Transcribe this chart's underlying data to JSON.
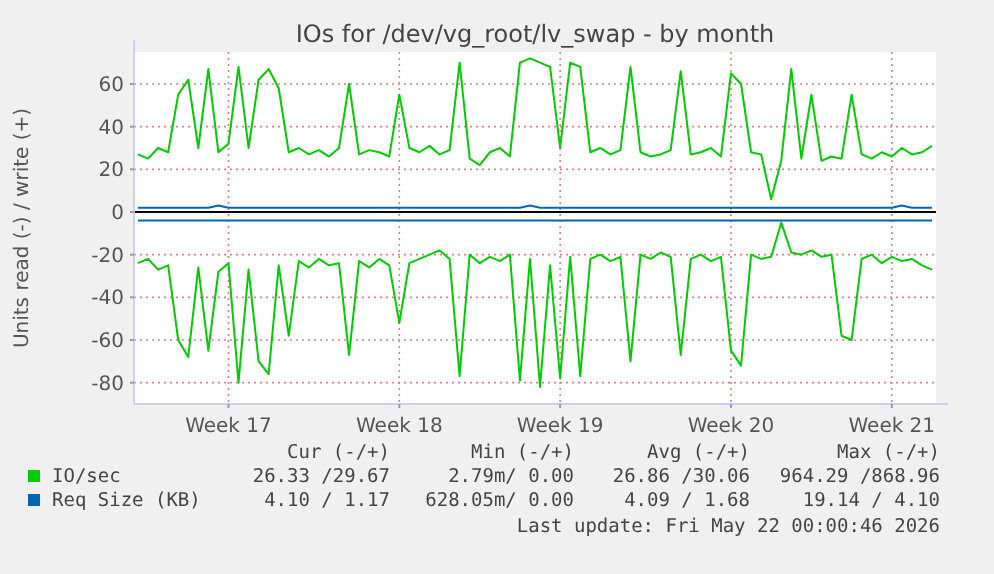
{
  "chart_data": {
    "type": "line",
    "title": "IOs for /dev/vg_root/lv_swap - by month",
    "ylabel": "Units read (-) / write (+)",
    "categories": [
      null,
      null,
      null,
      null,
      null,
      null,
      null,
      null,
      null,
      "Week 17",
      null,
      null,
      null,
      null,
      null,
      null,
      null,
      null,
      null,
      null,
      null,
      null,
      null,
      null,
      null,
      null,
      "Week 18",
      null,
      null,
      null,
      null,
      null,
      null,
      null,
      null,
      null,
      null,
      null,
      null,
      null,
      null,
      null,
      "Week 19",
      null,
      null,
      null,
      null,
      null,
      null,
      null,
      null,
      null,
      null,
      null,
      null,
      null,
      null,
      null,
      null,
      "Week 20",
      null,
      null,
      null,
      null,
      null,
      null,
      null,
      null,
      null,
      null,
      null,
      null,
      null,
      null,
      null,
      "Week 21",
      null,
      null,
      null,
      null
    ],
    "series": [
      {
        "name": "IO/sec",
        "color": "#00cc00",
        "values": [
          27,
          25,
          30,
          28,
          55,
          62,
          30,
          67,
          28,
          32,
          68,
          30,
          62,
          67,
          58,
          28,
          30,
          27,
          29,
          26,
          30,
          60,
          27,
          29,
          28,
          26,
          55,
          30,
          28,
          31,
          27,
          29,
          70,
          25,
          22,
          28,
          30,
          26,
          70,
          72,
          70,
          68,
          30,
          70,
          68,
          28,
          30,
          27,
          29,
          68,
          28,
          26,
          27,
          29,
          66,
          27,
          28,
          30,
          26,
          65,
          60,
          28,
          27,
          6,
          24,
          67,
          25,
          55,
          24,
          26,
          25,
          55,
          27,
          25,
          28,
          26,
          30,
          27,
          28,
          31
        ]
      },
      {
        "color": "#00cc00",
        "values": [
          -24,
          -22,
          -27,
          -25,
          -60,
          -68,
          -26,
          -65,
          -28,
          -24,
          -80,
          -27,
          -70,
          -76,
          -25,
          -58,
          -23,
          -26,
          -22,
          -25,
          -24,
          -67,
          -23,
          -26,
          -22,
          -25,
          -52,
          -24,
          -22,
          -20,
          -18,
          -22,
          -77,
          -20,
          -24,
          -21,
          -23,
          -20,
          -79,
          -22,
          -82,
          -25,
          -78,
          -21,
          -77,
          -22,
          -20,
          -23,
          -21,
          -70,
          -20,
          -22,
          -19,
          -21,
          -67,
          -22,
          -20,
          -23,
          -21,
          -65,
          -72,
          -20,
          -22,
          -21,
          -5,
          -19,
          -20,
          -18,
          -21,
          -20,
          -58,
          -60,
          -22,
          -20,
          -24,
          -21,
          -23,
          -22,
          -25,
          -27
        ]
      },
      {
        "name": "Req Size (KB)",
        "color": "#0066b3",
        "values": [
          2,
          2,
          2,
          2,
          2,
          2,
          2,
          2,
          3,
          2,
          2,
          2,
          2,
          2,
          2,
          2,
          2,
          2,
          2,
          2,
          2,
          2,
          2,
          2,
          2,
          2,
          2,
          2,
          2,
          2,
          2,
          2,
          2,
          2,
          2,
          2,
          2,
          2,
          2,
          3,
          2,
          2,
          2,
          2,
          2,
          2,
          2,
          2,
          2,
          2,
          2,
          2,
          2,
          2,
          2,
          2,
          2,
          2,
          2,
          2,
          2,
          2,
          2,
          2,
          2,
          2,
          2,
          2,
          2,
          2,
          2,
          2,
          2,
          2,
          2,
          2,
          3,
          2,
          2,
          2
        ]
      },
      {
        "color": "#0066b3",
        "values": [
          -4,
          -4,
          -4,
          -4,
          -4,
          -4,
          -4,
          -4,
          -4,
          -4,
          -4,
          -4,
          -4,
          -4,
          -4,
          -4,
          -4,
          -4,
          -4,
          -4,
          -4,
          -4,
          -4,
          -4,
          -4,
          -4,
          -4,
          -4,
          -4,
          -4,
          -4,
          -4,
          -4,
          -4,
          -4,
          -4,
          -4,
          -4,
          -4,
          -4,
          -4,
          -4,
          -4,
          -4,
          -4,
          -4,
          -4,
          -4,
          -4,
          -4,
          -4,
          -4,
          -4,
          -4,
          -4,
          -4,
          -4,
          -4,
          -4,
          -4,
          -4,
          -4,
          -4,
          -4,
          -4,
          -4,
          -4,
          -4,
          -4,
          -4,
          -4,
          -4,
          -4,
          -4,
          -4,
          -4,
          -4,
          -4,
          -4,
          -4
        ]
      }
    ],
    "ylim": [
      -90,
      75
    ],
    "yticks": [
      -80,
      -60,
      -40,
      -20,
      0,
      20,
      40,
      60
    ],
    "ref_lines": [
      {
        "axis": "y",
        "value": 0,
        "color": "#000000"
      }
    ],
    "grid": true,
    "legend": "bottom",
    "annotations": [
      "Cur (-/+)",
      "Min (-/+)",
      "Avg (-/+)",
      "Max (-/+)",
      "26.33 /29.67",
      "2.79m/ 0.00",
      "26.86 /30.06",
      "964.29 /868.96",
      "4.10 / 1.17",
      "628.05m/ 0.00",
      "4.09 / 1.68",
      "19.14 / 4.10",
      "Last update: Fri May 22 00:00:46 2026"
    ]
  }
}
